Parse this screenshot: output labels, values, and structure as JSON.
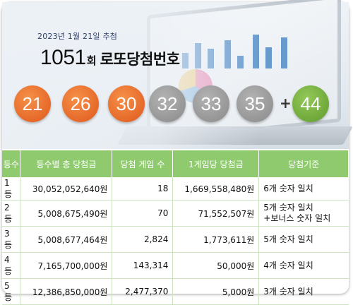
{
  "header": {
    "draw_date": "2023년 1월 21일 추첨",
    "round_number": "1051",
    "round_suffix": "회",
    "title_text": "로또당첨번호"
  },
  "numbers": {
    "main": [
      "21",
      "26",
      "30",
      "32",
      "33",
      "35"
    ],
    "plus": "+",
    "bonus": "44"
  },
  "colors": {
    "orange_ball": "#e6692a",
    "gray_ball": "#969696",
    "green_ball": "#6fa93a",
    "table_header": "#8fca6e"
  },
  "table": {
    "headers": [
      "등수",
      "등수별 총 당첨금",
      "당첨 게임 수",
      "1게임당 당첨금",
      "당첨기준"
    ],
    "rows": [
      {
        "rank": "1등",
        "total": "30,052,052,640원",
        "games": "18",
        "per_game": "1,669,558,480원",
        "criteria": [
          "6개 숫자 일치"
        ]
      },
      {
        "rank": "2등",
        "total": "5,008,675,490원",
        "games": "70",
        "per_game": "71,552,507원",
        "criteria": [
          "5개 숫자 일치",
          "+보너스 숫자 일치"
        ]
      },
      {
        "rank": "3등",
        "total": "5,008,677,464원",
        "games": "2,824",
        "per_game": "1,773,611원",
        "criteria": [
          "5개 숫자 일치"
        ]
      },
      {
        "rank": "4등",
        "total": "7,165,700,000원",
        "games": "143,314",
        "per_game": "50,000원",
        "criteria": [
          "4개 숫자 일치"
        ]
      },
      {
        "rank": "5등",
        "total": "12,386,850,000원",
        "games": "2,477,370",
        "per_game": "5,000원",
        "criteria": [
          "3개 숫자 일치"
        ]
      }
    ]
  }
}
